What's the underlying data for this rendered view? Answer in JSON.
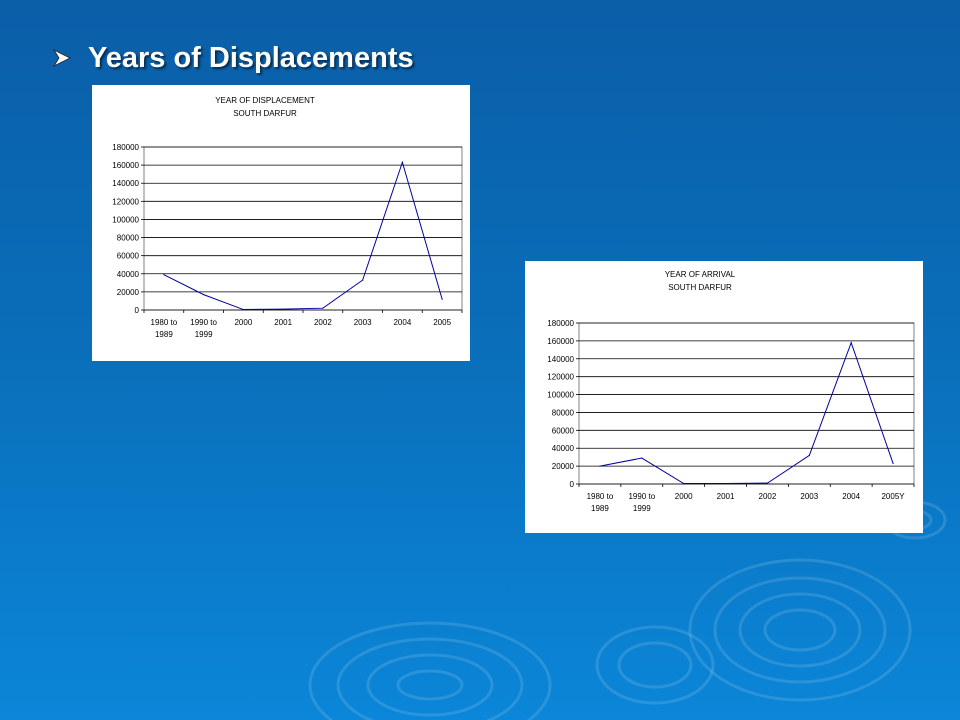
{
  "slide": {
    "title": "Years of Displacements"
  },
  "colors": {
    "background": "#0a6db8",
    "line": "#0000a0",
    "grid": "#000000"
  },
  "icons": {
    "bullet": "arrow-bullet-icon"
  },
  "chart_data": [
    {
      "type": "line",
      "title": "YEAR OF DISPLACEMENT",
      "subtitle": "SOUTH DARFUR",
      "categories": [
        [
          "1980 to",
          "1989"
        ],
        [
          "1990 to",
          "1999"
        ],
        [
          "2000"
        ],
        [
          "2001"
        ],
        [
          "2002"
        ],
        [
          "2003"
        ],
        [
          "2004"
        ],
        [
          "2005"
        ]
      ],
      "values": [
        39000,
        17000,
        500,
        1000,
        2000,
        33000,
        163000,
        12000
      ],
      "y_ticks": [
        "0",
        "20000",
        "40000",
        "60000",
        "80000",
        "100000",
        "120000",
        "140000",
        "160000",
        "180000"
      ],
      "ylim": [
        0,
        180000
      ],
      "grid": true,
      "legend": "none"
    },
    {
      "type": "line",
      "title": "YEAR OF ARRIVAL",
      "subtitle": "SOUTH DARFUR",
      "categories": [
        [
          "1980 to",
          "1989"
        ],
        [
          "1990 to",
          "1999"
        ],
        [
          "2000"
        ],
        [
          "2001"
        ],
        [
          "2002"
        ],
        [
          "2003"
        ],
        [
          "2004"
        ],
        [
          "2005Y"
        ]
      ],
      "values": [
        20000,
        29000,
        500,
        500,
        1000,
        32000,
        158000,
        23000
      ],
      "y_ticks": [
        "0",
        "20000",
        "40000",
        "60000",
        "80000",
        "100000",
        "120000",
        "140000",
        "160000",
        "180000"
      ],
      "ylim": [
        0,
        180000
      ],
      "grid": true,
      "legend": "none"
    }
  ]
}
